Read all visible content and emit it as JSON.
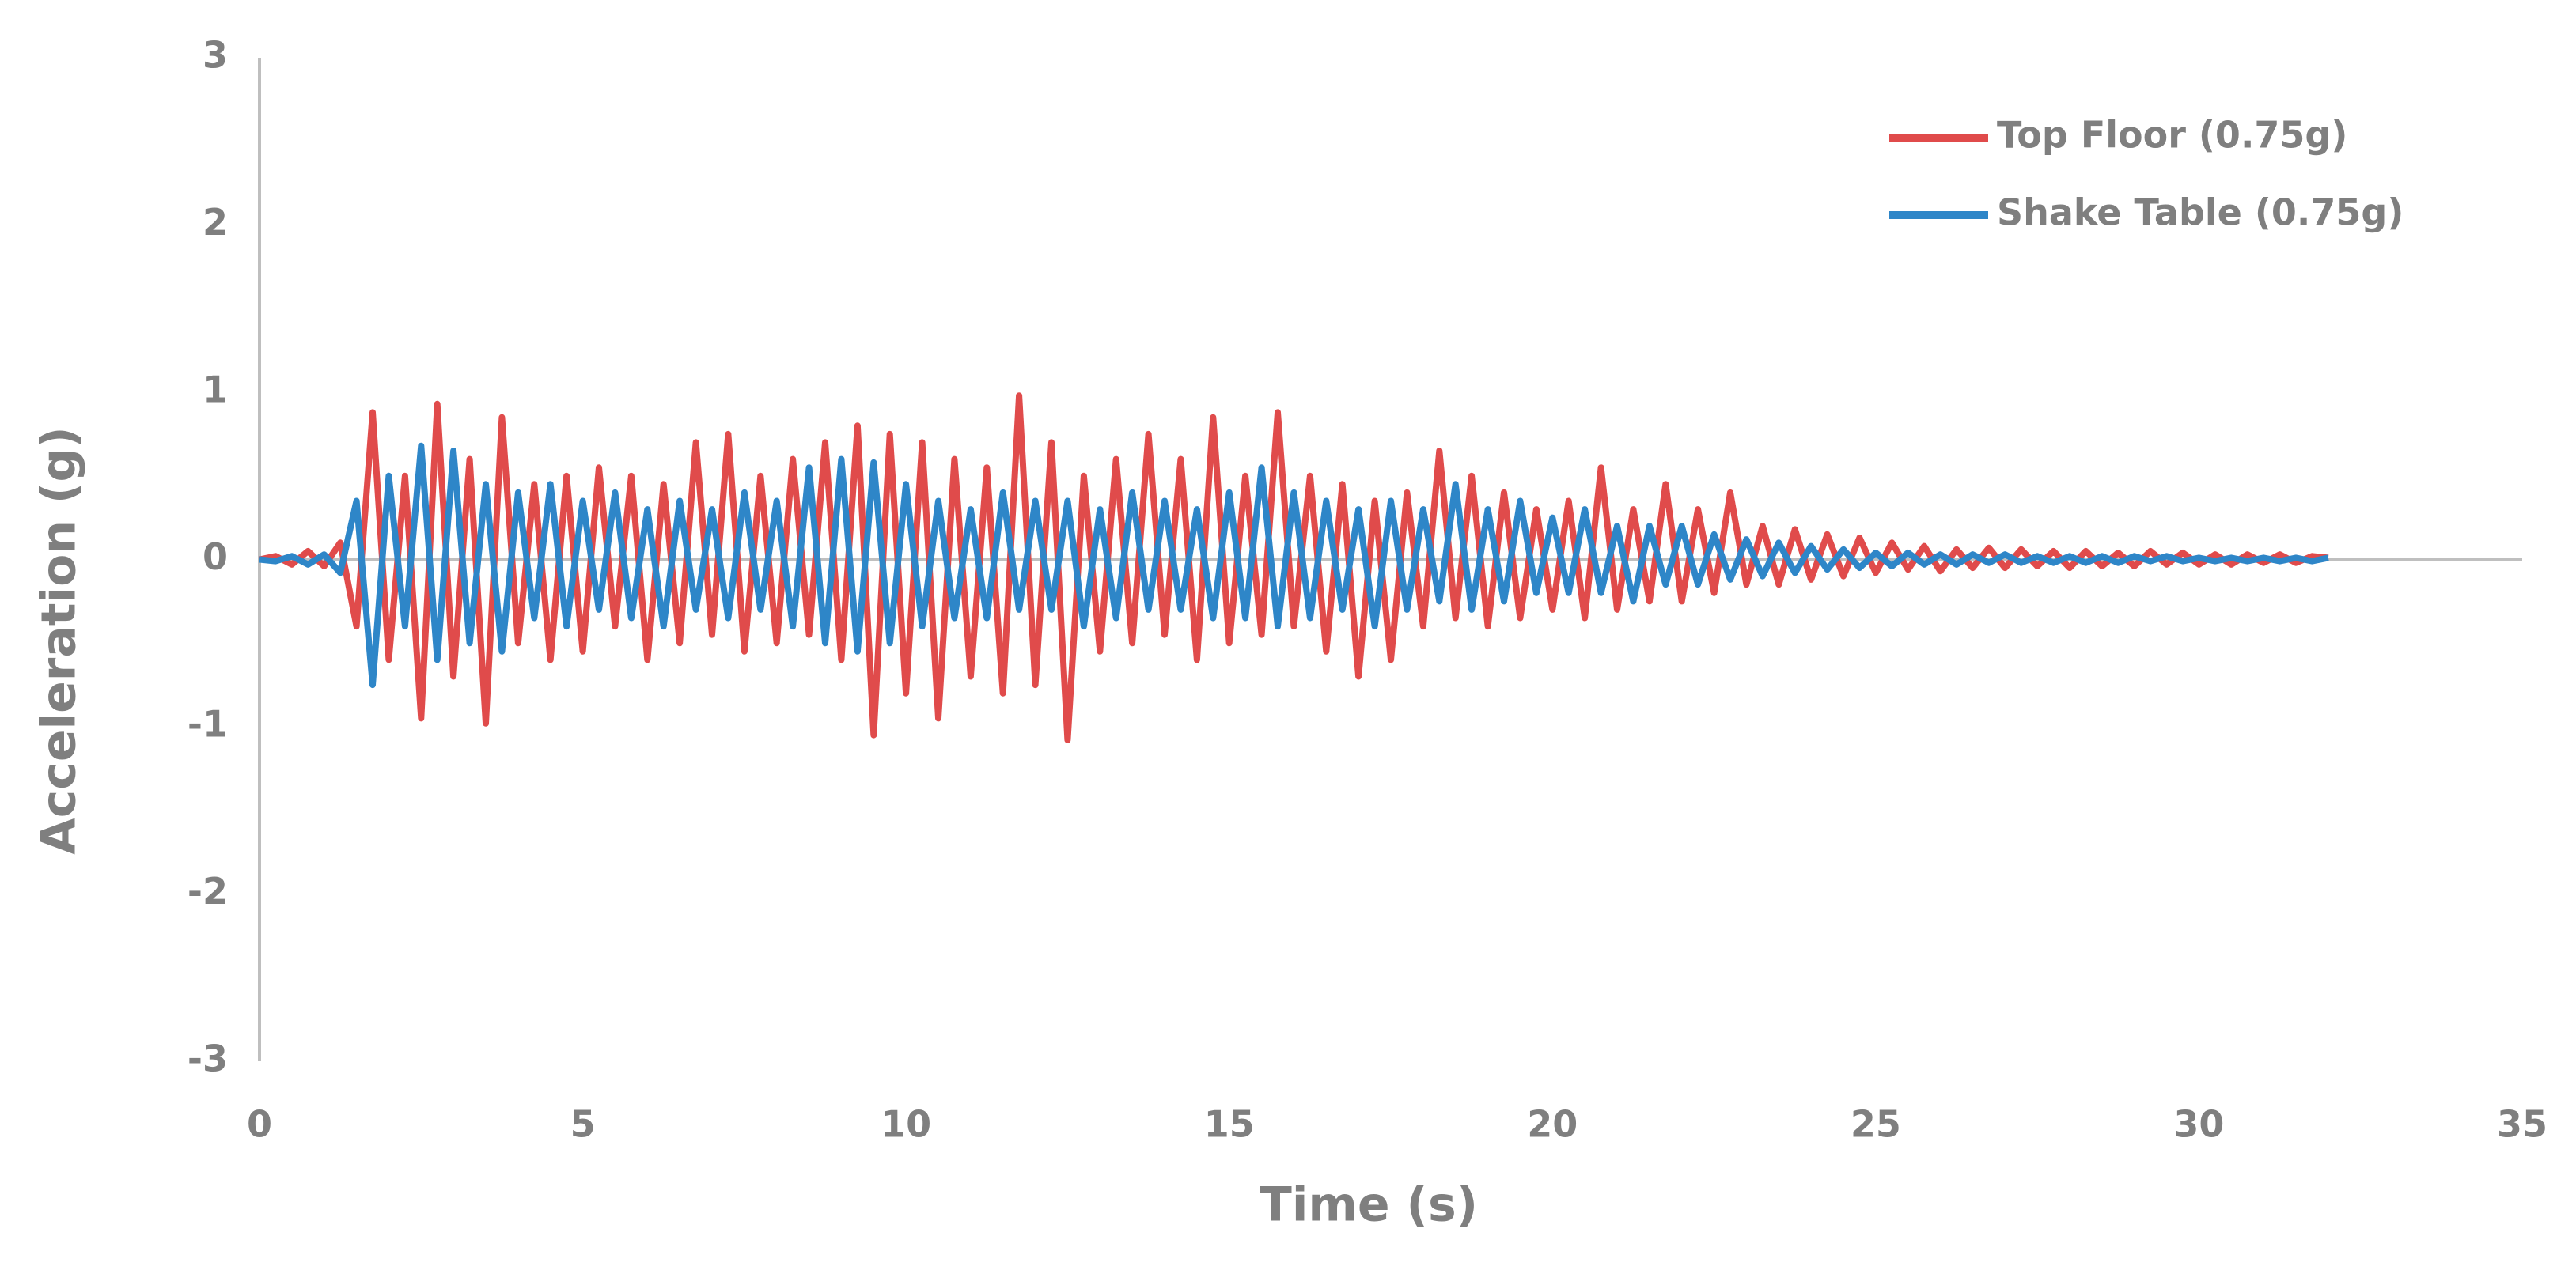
{
  "chart_data": {
    "type": "line",
    "x_label": "Time (s)",
    "y_label": "Acceleration (g)",
    "xlim": [
      0,
      35
    ],
    "xticks": [
      0,
      5,
      10,
      15,
      20,
      25,
      30,
      35
    ],
    "ylim": [
      -3,
      3
    ],
    "yticks": [
      -3,
      -2,
      -1,
      0,
      1,
      2,
      3
    ],
    "grid": false,
    "legend": "top-right",
    "x": [
      0,
      0.25,
      0.5,
      0.75,
      1,
      1.25,
      1.5,
      1.75,
      2,
      2.25,
      2.5,
      2.75,
      3,
      3.25,
      3.5,
      3.75,
      4,
      4.25,
      4.5,
      4.75,
      5,
      5.25,
      5.5,
      5.75,
      6,
      6.25,
      6.5,
      6.75,
      7,
      7.25,
      7.5,
      7.75,
      8,
      8.25,
      8.5,
      8.75,
      9,
      9.25,
      9.5,
      9.75,
      10,
      10.25,
      10.5,
      10.75,
      11,
      11.25,
      11.5,
      11.75,
      12,
      12.25,
      12.5,
      12.75,
      13,
      13.25,
      13.5,
      13.75,
      14,
      14.25,
      14.5,
      14.75,
      15,
      15.25,
      15.5,
      15.75,
      16,
      16.25,
      16.5,
      16.75,
      17,
      17.25,
      17.5,
      17.75,
      18,
      18.25,
      18.5,
      18.75,
      19,
      19.25,
      19.5,
      19.75,
      20,
      20.25,
      20.5,
      20.75,
      21,
      21.25,
      21.5,
      21.75,
      22,
      22.25,
      22.5,
      22.75,
      23,
      23.25,
      23.5,
      23.75,
      24,
      24.25,
      24.5,
      24.75,
      25,
      25.25,
      25.5,
      25.75,
      26,
      26.25,
      26.5,
      26.75,
      27,
      27.25,
      27.5,
      27.75,
      28,
      28.25,
      28.5,
      28.75,
      29,
      29.25,
      29.5,
      29.75,
      30,
      30.25,
      30.5,
      30.75,
      31,
      31.25,
      31.5,
      31.75,
      32
    ],
    "series": [
      {
        "name": "Top Floor (0.75g)",
        "color": "#e04b4b",
        "values": [
          0,
          0.02,
          -0.03,
          0.05,
          -0.04,
          0.1,
          -0.4,
          0.88,
          -0.6,
          0.5,
          -0.95,
          0.93,
          -0.7,
          0.6,
          -0.98,
          0.85,
          -0.5,
          0.45,
          -0.6,
          0.5,
          -0.55,
          0.55,
          -0.4,
          0.5,
          -0.6,
          0.45,
          -0.5,
          0.7,
          -0.45,
          0.75,
          -0.55,
          0.5,
          -0.5,
          0.6,
          -0.45,
          0.7,
          -0.6,
          0.8,
          -1.05,
          0.75,
          -0.8,
          0.7,
          -0.95,
          0.6,
          -0.7,
          0.55,
          -0.8,
          0.98,
          -0.75,
          0.7,
          -1.08,
          0.5,
          -0.55,
          0.6,
          -0.5,
          0.75,
          -0.45,
          0.6,
          -0.6,
          0.85,
          -0.5,
          0.5,
          -0.45,
          0.88,
          -0.4,
          0.5,
          -0.55,
          0.45,
          -0.7,
          0.35,
          -0.6,
          0.4,
          -0.4,
          0.65,
          -0.35,
          0.5,
          -0.4,
          0.4,
          -0.35,
          0.3,
          -0.3,
          0.35,
          -0.35,
          0.55,
          -0.3,
          0.3,
          -0.25,
          0.45,
          -0.25,
          0.3,
          -0.2,
          0.4,
          -0.15,
          0.2,
          -0.15,
          0.18,
          -0.12,
          0.15,
          -0.1,
          0.13,
          -0.08,
          0.1,
          -0.06,
          0.08,
          -0.07,
          0.06,
          -0.05,
          0.07,
          -0.05,
          0.06,
          -0.04,
          0.05,
          -0.05,
          0.05,
          -0.04,
          0.04,
          -0.04,
          0.05,
          -0.03,
          0.04,
          -0.03,
          0.03,
          -0.03,
          0.03,
          -0.02,
          0.03,
          -0.02,
          0.02,
          0.01
        ]
      },
      {
        "name": "Shake Table (0.75g)",
        "color": "#2e86c8",
        "values": [
          0,
          -0.01,
          0.02,
          -0.03,
          0.03,
          -0.08,
          0.35,
          -0.75,
          0.5,
          -0.4,
          0.68,
          -0.6,
          0.65,
          -0.5,
          0.45,
          -0.55,
          0.4,
          -0.35,
          0.45,
          -0.4,
          0.35,
          -0.3,
          0.4,
          -0.35,
          0.3,
          -0.4,
          0.35,
          -0.3,
          0.3,
          -0.35,
          0.4,
          -0.3,
          0.35,
          -0.4,
          0.55,
          -0.5,
          0.6,
          -0.55,
          0.58,
          -0.5,
          0.45,
          -0.4,
          0.35,
          -0.35,
          0.3,
          -0.35,
          0.4,
          -0.3,
          0.35,
          -0.3,
          0.35,
          -0.4,
          0.3,
          -0.35,
          0.4,
          -0.3,
          0.35,
          -0.3,
          0.3,
          -0.35,
          0.4,
          -0.35,
          0.55,
          -0.4,
          0.4,
          -0.35,
          0.35,
          -0.3,
          0.3,
          -0.4,
          0.35,
          -0.3,
          0.3,
          -0.25,
          0.45,
          -0.3,
          0.3,
          -0.25,
          0.35,
          -0.2,
          0.25,
          -0.2,
          0.3,
          -0.2,
          0.2,
          -0.25,
          0.2,
          -0.15,
          0.2,
          -0.15,
          0.15,
          -0.12,
          0.12,
          -0.1,
          0.1,
          -0.08,
          0.08,
          -0.06,
          0.06,
          -0.05,
          0.04,
          -0.04,
          0.04,
          -0.03,
          0.03,
          -0.03,
          0.03,
          -0.02,
          0.03,
          -0.02,
          0.02,
          -0.02,
          0.02,
          -0.02,
          0.02,
          -0.02,
          0.02,
          -0.01,
          0.02,
          -0.01,
          0.01,
          -0.01,
          0.01,
          -0.01,
          0.01,
          -0.01,
          0.01,
          -0.01,
          0.01
        ]
      }
    ]
  }
}
